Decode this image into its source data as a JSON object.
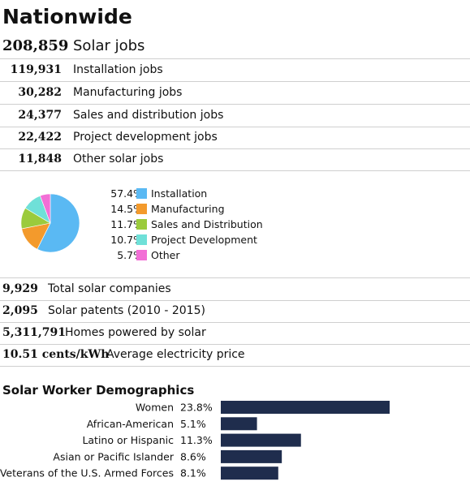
{
  "page_title": "Nationwide",
  "total_jobs": {
    "value": "208,859",
    "label": "Solar jobs"
  },
  "jobs": [
    {
      "value": "119,931",
      "label": "Installation jobs"
    },
    {
      "value": "30,282",
      "label": "Manufacturing jobs"
    },
    {
      "value": "24,377",
      "label": "Sales and distribution jobs"
    },
    {
      "value": "22,422",
      "label": "Project development jobs"
    },
    {
      "value": "11,848",
      "label": "Other solar jobs"
    }
  ],
  "stats": [
    {
      "value": "9,929",
      "label": "Total solar companies"
    },
    {
      "value": "2,095",
      "label": "Solar patents (2010 - 2015)"
    },
    {
      "value": "5,311,791",
      "label": "Homes powered by solar"
    },
    {
      "value": "10.51 cents/kWh",
      "label": "Average electricity price"
    }
  ],
  "demographics_title": "Solar Worker Demographics",
  "chart_data": [
    {
      "type": "pie",
      "labels": [
        "Installation",
        "Manufacturing",
        "Sales and Distribution",
        "Project Development",
        "Other"
      ],
      "percent_labels": [
        "57.4%",
        "14.5%",
        "11.7%",
        "10.7%",
        "5.7%"
      ],
      "values": [
        57.4,
        14.5,
        11.7,
        10.7,
        5.7
      ],
      "colors": [
        "#5ab9f3",
        "#f39a2c",
        "#9bcb3c",
        "#6fe0d8",
        "#f26fd6"
      ],
      "legend_position": "right"
    },
    {
      "type": "bar",
      "orientation": "horizontal",
      "title": "Solar Worker Demographics",
      "categories": [
        "Women",
        "African-American",
        "Latino or Hispanic",
        "Asian or Pacific Islander",
        "Veterans of the U.S. Armed Forces"
      ],
      "value_labels": [
        "23.8%",
        "5.1%",
        "11.3%",
        "8.6%",
        "8.1%"
      ],
      "values": [
        23.8,
        5.1,
        11.3,
        8.6,
        8.1
      ],
      "color": "#1f2d4d"
    }
  ]
}
